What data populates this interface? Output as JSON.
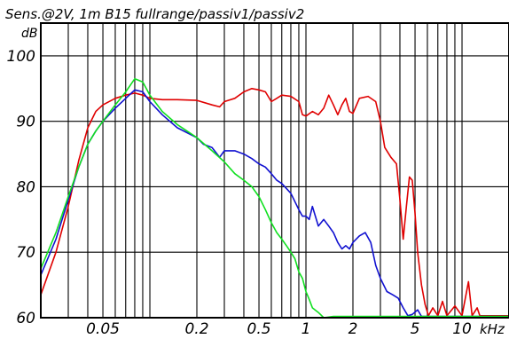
{
  "chart_data": {
    "type": "line",
    "title": "Sens.@2V, 1m B15 fullrange/passiv1/passiv2",
    "ylabel": "dB",
    "xunit": "kHz",
    "xscale": "log",
    "xlim": [
      0.02,
      20
    ],
    "ylim": [
      60,
      105
    ],
    "grid": true,
    "x_tick_labels": [
      {
        "value": 0.05,
        "label": "0.05"
      },
      {
        "value": 0.2,
        "label": "0.2"
      },
      {
        "value": 0.5,
        "label": "0.5"
      },
      {
        "value": 1,
        "label": "1"
      },
      {
        "value": 2,
        "label": "2"
      },
      {
        "value": 5,
        "label": "5"
      },
      {
        "value": 10,
        "label": "10"
      }
    ],
    "y_tick_labels": [
      {
        "value": 60,
        "label": "60"
      },
      {
        "value": 70,
        "label": "70"
      },
      {
        "value": 80,
        "label": "80"
      },
      {
        "value": 90,
        "label": "90"
      },
      {
        "value": 100,
        "label": "100"
      }
    ],
    "series": [
      {
        "color": "#e00000",
        "points": [
          [
            0.02,
            63.5
          ],
          [
            0.025,
            70
          ],
          [
            0.03,
            77
          ],
          [
            0.035,
            84
          ],
          [
            0.04,
            89
          ],
          [
            0.045,
            91.5
          ],
          [
            0.05,
            92.5
          ],
          [
            0.06,
            93.5
          ],
          [
            0.07,
            94
          ],
          [
            0.08,
            94.3
          ],
          [
            0.09,
            94
          ],
          [
            0.1,
            93.5
          ],
          [
            0.12,
            93.3
          ],
          [
            0.15,
            93.3
          ],
          [
            0.2,
            93.2
          ],
          [
            0.25,
            92.5
          ],
          [
            0.28,
            92.2
          ],
          [
            0.3,
            93
          ],
          [
            0.35,
            93.5
          ],
          [
            0.4,
            94.5
          ],
          [
            0.45,
            95
          ],
          [
            0.5,
            94.8
          ],
          [
            0.55,
            94.5
          ],
          [
            0.6,
            93
          ],
          [
            0.65,
            93.5
          ],
          [
            0.7,
            94
          ],
          [
            0.8,
            93.8
          ],
          [
            0.9,
            93
          ],
          [
            0.95,
            91
          ],
          [
            1.0,
            90.8
          ],
          [
            1.1,
            91.5
          ],
          [
            1.2,
            91
          ],
          [
            1.3,
            92
          ],
          [
            1.4,
            94
          ],
          [
            1.5,
            92.5
          ],
          [
            1.6,
            91
          ],
          [
            1.7,
            92.5
          ],
          [
            1.8,
            93.5
          ],
          [
            1.9,
            91.5
          ],
          [
            2.0,
            91.2
          ],
          [
            2.2,
            93.5
          ],
          [
            2.5,
            93.8
          ],
          [
            2.8,
            93
          ],
          [
            3.0,
            90
          ],
          [
            3.2,
            86
          ],
          [
            3.5,
            84.5
          ],
          [
            3.8,
            83.5
          ],
          [
            4.0,
            78
          ],
          [
            4.2,
            72
          ],
          [
            4.4,
            77
          ],
          [
            4.6,
            81.5
          ],
          [
            4.8,
            81
          ],
          [
            5.0,
            76
          ],
          [
            5.2,
            70
          ],
          [
            5.5,
            65
          ],
          [
            5.8,
            62
          ],
          [
            6.1,
            60.3
          ],
          [
            6.5,
            61.5
          ],
          [
            7.0,
            60.3
          ],
          [
            7.5,
            62.5
          ],
          [
            8.0,
            60.3
          ],
          [
            9.0,
            61.8
          ],
          [
            10.0,
            60.3
          ],
          [
            11.0,
            65.5
          ],
          [
            11.6,
            60.3
          ],
          [
            12.5,
            61.5
          ],
          [
            13.0,
            60.3
          ],
          [
            20,
            60.3
          ]
        ]
      },
      {
        "color": "#1010d0",
        "points": [
          [
            0.02,
            66.5
          ],
          [
            0.025,
            72
          ],
          [
            0.03,
            78
          ],
          [
            0.035,
            83
          ],
          [
            0.04,
            86.5
          ],
          [
            0.045,
            88.5
          ],
          [
            0.05,
            90
          ],
          [
            0.06,
            92
          ],
          [
            0.07,
            93.5
          ],
          [
            0.08,
            94.8
          ],
          [
            0.09,
            94.5
          ],
          [
            0.1,
            93
          ],
          [
            0.12,
            91
          ],
          [
            0.15,
            89
          ],
          [
            0.2,
            87.5
          ],
          [
            0.22,
            86.5
          ],
          [
            0.25,
            86
          ],
          [
            0.28,
            84.5
          ],
          [
            0.3,
            85.5
          ],
          [
            0.35,
            85.5
          ],
          [
            0.4,
            85
          ],
          [
            0.45,
            84.3
          ],
          [
            0.5,
            83.5
          ],
          [
            0.55,
            83
          ],
          [
            0.6,
            82
          ],
          [
            0.65,
            81
          ],
          [
            0.7,
            80.5
          ],
          [
            0.8,
            79
          ],
          [
            0.9,
            76.5
          ],
          [
            0.95,
            75.5
          ],
          [
            1.0,
            75.5
          ],
          [
            1.05,
            75
          ],
          [
            1.1,
            77
          ],
          [
            1.2,
            74
          ],
          [
            1.3,
            75
          ],
          [
            1.4,
            74
          ],
          [
            1.5,
            73
          ],
          [
            1.6,
            71.5
          ],
          [
            1.7,
            70.5
          ],
          [
            1.8,
            71
          ],
          [
            1.9,
            70.5
          ],
          [
            2.0,
            71.5
          ],
          [
            2.2,
            72.5
          ],
          [
            2.4,
            73
          ],
          [
            2.6,
            71.5
          ],
          [
            2.8,
            68
          ],
          [
            3.0,
            66
          ],
          [
            3.3,
            64
          ],
          [
            3.6,
            63.5
          ],
          [
            3.9,
            63
          ],
          [
            4.2,
            61.5
          ],
          [
            4.5,
            60.3
          ],
          [
            4.8,
            60.5
          ],
          [
            5.2,
            61.2
          ],
          [
            5.5,
            60.2
          ],
          [
            20,
            60.2
          ]
        ]
      },
      {
        "color": "#10e020",
        "points": [
          [
            0.02,
            67.5
          ],
          [
            0.025,
            73
          ],
          [
            0.03,
            78.5
          ],
          [
            0.035,
            83
          ],
          [
            0.04,
            86.5
          ],
          [
            0.045,
            88.5
          ],
          [
            0.05,
            90
          ],
          [
            0.06,
            92.5
          ],
          [
            0.07,
            94.5
          ],
          [
            0.08,
            96.5
          ],
          [
            0.09,
            96
          ],
          [
            0.1,
            94
          ],
          [
            0.12,
            91.5
          ],
          [
            0.15,
            89.5
          ],
          [
            0.2,
            87.5
          ],
          [
            0.25,
            85.5
          ],
          [
            0.3,
            83.8
          ],
          [
            0.35,
            82
          ],
          [
            0.4,
            81
          ],
          [
            0.45,
            80
          ],
          [
            0.5,
            78.5
          ],
          [
            0.55,
            76.5
          ],
          [
            0.6,
            74.5
          ],
          [
            0.65,
            73
          ],
          [
            0.7,
            72
          ],
          [
            0.75,
            71
          ],
          [
            0.8,
            70
          ],
          [
            0.85,
            69
          ],
          [
            0.9,
            67
          ],
          [
            0.95,
            66
          ],
          [
            1.0,
            64
          ],
          [
            1.05,
            62.8
          ],
          [
            1.1,
            61.5
          ],
          [
            1.2,
            60.8
          ],
          [
            1.3,
            60
          ],
          [
            1.5,
            60.2
          ],
          [
            20,
            60.2
          ]
        ]
      }
    ]
  }
}
